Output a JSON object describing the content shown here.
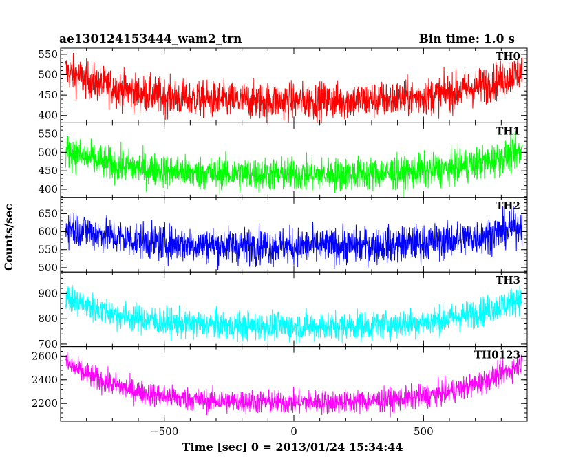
{
  "chart_data": {
    "type": "line",
    "title": "ae130124153444_wam2_trn",
    "bin_time_label": "Bin time: 1.0 s",
    "xlabel": "Time [sec] 0 = 2013/01/24 15:34:44",
    "ylabel": "Counts/sec",
    "xlim": [
      -900,
      900
    ],
    "x_ticks": [
      -500,
      0,
      500
    ],
    "series": [
      {
        "name": "TH0",
        "color": "#ff0000",
        "ylim": [
          382,
          565
        ],
        "y_ticks": [
          400,
          450,
          500,
          550
        ],
        "curve": {
          "center": 435,
          "edge": 500,
          "noise": 32
        }
      },
      {
        "name": "TH1",
        "color": "#00ff00",
        "ylim": [
          378,
          580
        ],
        "y_ticks": [
          400,
          450,
          500,
          550
        ],
        "curve": {
          "center": 440,
          "edge": 495,
          "noise": 32
        }
      },
      {
        "name": "TH2",
        "color": "#0000ff",
        "ylim": [
          488,
          695
        ],
        "y_ticks": [
          500,
          550,
          600,
          650
        ],
        "curve": {
          "center": 560,
          "edge": 610,
          "noise": 35
        }
      },
      {
        "name": "TH3",
        "color": "#00ffff",
        "ylim": [
          690,
          985
        ],
        "y_ticks": [
          700,
          800,
          900
        ],
        "curve": {
          "center": 770,
          "edge": 870,
          "noise": 40
        }
      },
      {
        "name": "TH0123",
        "color": "#ff00ff",
        "ylim": [
          2050,
          2680
        ],
        "y_ticks": [
          2200,
          2400,
          2600
        ],
        "curve": {
          "center": 2210,
          "edge": 2500,
          "noise": 70
        }
      }
    ]
  }
}
